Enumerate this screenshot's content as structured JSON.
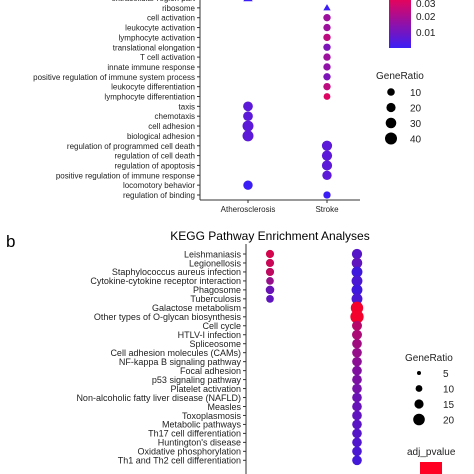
{
  "chart_data": [
    {
      "type": "scatter",
      "title": "",
      "xlabel": "",
      "ylabel": "",
      "x_categories": [
        "Atherosclerosis",
        "Stroke"
      ],
      "terms": [
        "extracellular region part",
        "ribosome",
        "cell activation",
        "leukocyte activation",
        "lymphocyte activation",
        "translational elongation",
        "T cell activation",
        "innate immune response",
        "positive regulation of immune system process",
        "leukocyte differentiation",
        "lymphocyte differentiation",
        "taxis",
        "chemotaxis",
        "cell adhesion",
        "biological adhesion",
        "regulation of programmed cell death",
        "regulation of cell death",
        "regulation of apoptosis",
        "positive regulation of immune response",
        "locomotory behavior",
        "regulation of binding"
      ],
      "points": [
        {
          "term": "extracellular region part",
          "x": "Atherosclerosis",
          "gene_ratio": 20,
          "p": 0.005
        },
        {
          "term": "ribosome",
          "x": "Stroke",
          "gene_ratio": 10,
          "p": 0.005
        },
        {
          "term": "cell activation",
          "x": "Stroke",
          "gene_ratio": 10,
          "p": 0.02
        },
        {
          "term": "leukocyte activation",
          "x": "Stroke",
          "gene_ratio": 10,
          "p": 0.02
        },
        {
          "term": "lymphocyte activation",
          "x": "Stroke",
          "gene_ratio": 10,
          "p": 0.025
        },
        {
          "term": "translational elongation",
          "x": "Stroke",
          "gene_ratio": 10,
          "p": 0.015
        },
        {
          "term": "T cell activation",
          "x": "Stroke",
          "gene_ratio": 10,
          "p": 0.02
        },
        {
          "term": "innate immune response",
          "x": "Stroke",
          "gene_ratio": 10,
          "p": 0.018
        },
        {
          "term": "positive regulation of immune system process",
          "x": "Stroke",
          "gene_ratio": 10,
          "p": 0.015
        },
        {
          "term": "leukocyte differentiation",
          "x": "Stroke",
          "gene_ratio": 10,
          "p": 0.025
        },
        {
          "term": "lymphocyte differentiation",
          "x": "Stroke",
          "gene_ratio": 8,
          "p": 0.03
        },
        {
          "term": "taxis",
          "x": "Atherosclerosis",
          "gene_ratio": 22,
          "p": 0.01
        },
        {
          "term": "chemotaxis",
          "x": "Atherosclerosis",
          "gene_ratio": 22,
          "p": 0.01
        },
        {
          "term": "cell adhesion",
          "x": "Atherosclerosis",
          "gene_ratio": 30,
          "p": 0.01
        },
        {
          "term": "biological adhesion",
          "x": "Atherosclerosis",
          "gene_ratio": 30,
          "p": 0.01
        },
        {
          "term": "regulation of programmed cell death",
          "x": "Stroke",
          "gene_ratio": 25,
          "p": 0.01
        },
        {
          "term": "regulation of cell death",
          "x": "Stroke",
          "gene_ratio": 25,
          "p": 0.01
        },
        {
          "term": "regulation of apoptosis",
          "x": "Stroke",
          "gene_ratio": 25,
          "p": 0.01
        },
        {
          "term": "positive regulation of immune response",
          "x": "Stroke",
          "gene_ratio": 20,
          "p": 0.01
        },
        {
          "term": "locomotory behavior",
          "x": "Atherosclerosis",
          "gene_ratio": 20,
          "p": 0.005
        },
        {
          "term": "regulation of binding",
          "x": "Stroke",
          "gene_ratio": 10,
          "p": 0.005
        }
      ],
      "color_legend": {
        "ticks": [
          0.03,
          0.02,
          0.01
        ],
        "low_color": "#3b1ef5",
        "high_color": "#ff0044"
      },
      "size_legend": {
        "title": "GeneRatio",
        "values": [
          10,
          20,
          30,
          40
        ]
      }
    },
    {
      "type": "scatter",
      "panel_label": "b",
      "title": "KEGG Pathway Enrichment Analyses",
      "xlabel": "",
      "ylabel": "",
      "terms": [
        "Leishmaniasis",
        "Legionellosis",
        "Staphylococcus aureus infection",
        "Cytokine-cytokine receptor interaction",
        "Phagosome",
        "Tuberculosis",
        "Galactose metabolism",
        "Other types of O-glycan biosynthesis",
        "Cell cycle",
        "HTLV-I infection",
        "Spliceosome",
        "Cell adhesion molecules (CAMs)",
        "NF-kappa B signaling pathway",
        "Focal adhesion",
        "p53 signaling pathway",
        "Platelet activation",
        "Non-alcoholic fatty liver disease (NAFLD)",
        "Measles",
        "Toxoplasmosis",
        "Metabolic pathways",
        "Th17 cell differentiation",
        "Huntington's disease",
        "Oxidative phosphorylation",
        "Th1 and Th2 cell differentiation"
      ],
      "points": [
        {
          "term": "Leishmaniasis",
          "col": 1,
          "gene_ratio": 6,
          "p": 0.2
        },
        {
          "term": "Legionellosis",
          "col": 1,
          "gene_ratio": 6,
          "p": 0.25
        },
        {
          "term": "Staphylococcus aureus infection",
          "col": 1,
          "gene_ratio": 6,
          "p": 0.3
        },
        {
          "term": "Cytokine-cytokine receptor interaction",
          "col": 1,
          "gene_ratio": 5,
          "p": 0.5
        },
        {
          "term": "Phagosome",
          "col": 1,
          "gene_ratio": 7,
          "p": 0.7
        },
        {
          "term": "Tuberculosis",
          "col": 1,
          "gene_ratio": 5,
          "p": 0.75
        },
        {
          "term": "Leishmaniasis",
          "col": 2,
          "gene_ratio": 12,
          "p": 0.8
        },
        {
          "term": "Legionellosis",
          "col": 2,
          "gene_ratio": 13,
          "p": 0.75
        },
        {
          "term": "Staphylococcus aureus infection",
          "col": 2,
          "gene_ratio": 14,
          "p": 0.9
        },
        {
          "term": "Cytokine-cytokine receptor interaction",
          "col": 2,
          "gene_ratio": 14,
          "p": 0.85
        },
        {
          "term": "Phagosome",
          "col": 2,
          "gene_ratio": 14,
          "p": 0.9
        },
        {
          "term": "Tuberculosis",
          "col": 2,
          "gene_ratio": 14,
          "p": 0.85
        },
        {
          "term": "Galactose metabolism",
          "col": 2,
          "gene_ratio": 20,
          "p": 0.05
        },
        {
          "term": "Other types of O-glycan biosynthesis",
          "col": 2,
          "gene_ratio": 24,
          "p": 0.05
        },
        {
          "term": "Cell cycle",
          "col": 2,
          "gene_ratio": 11,
          "p": 0.35
        },
        {
          "term": "HTLV-I infection",
          "col": 2,
          "gene_ratio": 11,
          "p": 0.4
        },
        {
          "term": "Spliceosome",
          "col": 2,
          "gene_ratio": 10,
          "p": 0.45
        },
        {
          "term": "Cell adhesion molecules (CAMs)",
          "col": 2,
          "gene_ratio": 10,
          "p": 0.5
        },
        {
          "term": "NF-kappa B signaling pathway",
          "col": 2,
          "gene_ratio": 10,
          "p": 0.55
        },
        {
          "term": "Focal adhesion",
          "col": 2,
          "gene_ratio": 10,
          "p": 0.6
        },
        {
          "term": "p53 signaling pathway",
          "col": 2,
          "gene_ratio": 10,
          "p": 0.62
        },
        {
          "term": "Platelet activation",
          "col": 2,
          "gene_ratio": 10,
          "p": 0.65
        },
        {
          "term": "Non-alcoholic fatty liver disease (NAFLD)",
          "col": 2,
          "gene_ratio": 10,
          "p": 0.7
        },
        {
          "term": "Measles",
          "col": 2,
          "gene_ratio": 10,
          "p": 0.72
        },
        {
          "term": "Toxoplasmosis",
          "col": 2,
          "gene_ratio": 10,
          "p": 0.75
        },
        {
          "term": "Metabolic pathways",
          "col": 2,
          "gene_ratio": 10,
          "p": 0.78
        },
        {
          "term": "Th17 cell differentiation",
          "col": 2,
          "gene_ratio": 10,
          "p": 0.8
        },
        {
          "term": "Huntington's disease",
          "col": 2,
          "gene_ratio": 10,
          "p": 0.82
        },
        {
          "term": "Oxidative phosphorylation",
          "col": 2,
          "gene_ratio": 10,
          "p": 0.85
        },
        {
          "term": "Th1 and Th2 cell differentiation",
          "col": 2,
          "gene_ratio": 10,
          "p": 0.88
        }
      ],
      "size_legend": {
        "title": "GeneRatio",
        "values": [
          5,
          10,
          15,
          20
        ]
      },
      "color_legend": {
        "title": "adj_pvalue",
        "high_color": "#ff0022",
        "low_color": "#2a1bf2"
      }
    }
  ]
}
